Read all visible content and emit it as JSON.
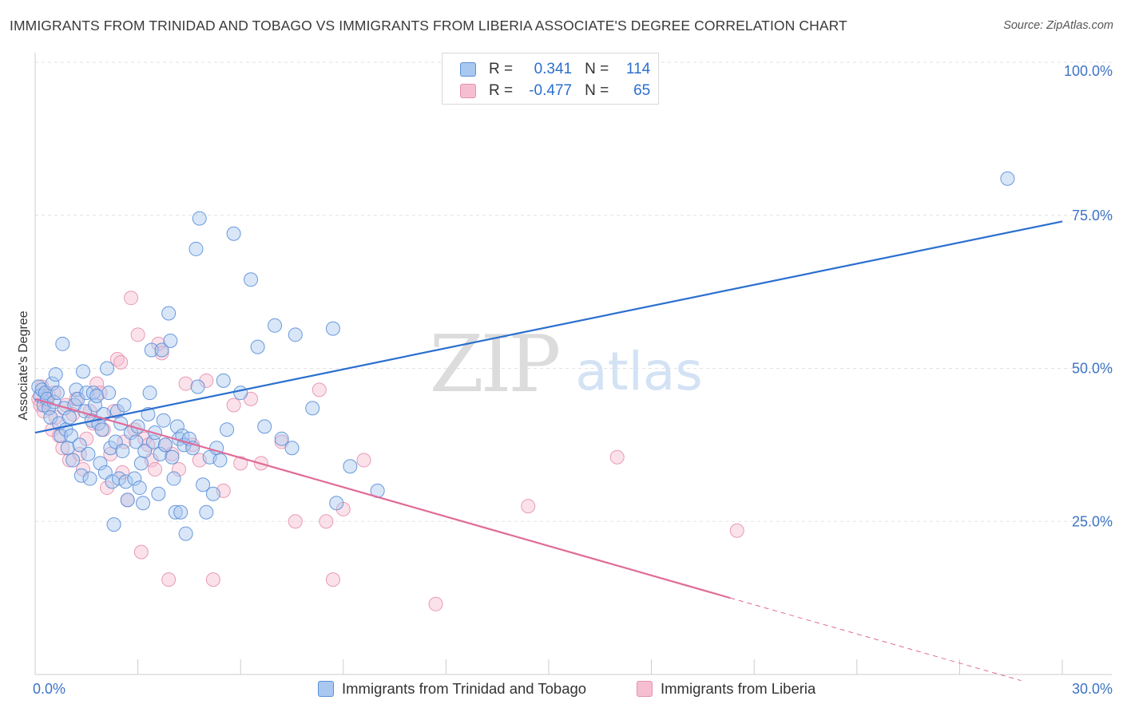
{
  "header": {
    "title": "IMMIGRANTS FROM TRINIDAD AND TOBAGO VS IMMIGRANTS FROM LIBERIA ASSOCIATE'S DEGREE CORRELATION CHART",
    "source": "Source: ZipAtlas.com"
  },
  "watermark": {
    "part1": "ZIP",
    "part2": "atlas"
  },
  "colors": {
    "blue_fill": "#a8c8f0",
    "blue_stroke": "#5b8fd8",
    "blue_line": "#2b6fcf",
    "pink_fill": "#f6bfd1",
    "pink_stroke": "#e690ae",
    "pink_line": "#e06c98",
    "tick_label": "#3d73c5",
    "grid": "#e2e2e2"
  },
  "legend": {
    "rows": [
      {
        "r_label": "R =",
        "r_value": "0.341",
        "n_label": "N =",
        "n_value": "114"
      },
      {
        "r_label": "R =",
        "r_value": "-0.477",
        "n_label": "N =",
        "n_value": "65"
      }
    ]
  },
  "chart_data": {
    "type": "scatter",
    "title": "IMMIGRANTS FROM TRINIDAD AND TOBAGO VS IMMIGRANTS FROM LIBERIA ASSOCIATE'S DEGREE CORRELATION CHART",
    "xlabel": "",
    "ylabel": "Associate's Degree",
    "xlim": [
      0,
      30
    ],
    "ylim": [
      0,
      100
    ],
    "x_tick_labels": [
      "0.0%",
      "30.0%"
    ],
    "x_tick_values": [
      0,
      30
    ],
    "y_tick_labels": [
      "100.0%",
      "75.0%",
      "50.0%",
      "25.0%"
    ],
    "y_tick_values": [
      100,
      75,
      50,
      25
    ],
    "grid": true,
    "legend_position": "top-center",
    "series": [
      {
        "name": "Immigrants from Trinidad and Tobago",
        "trendline": {
          "x": [
            0,
            30
          ],
          "y": [
            39.5,
            74
          ]
        },
        "points": [
          [
            0.1,
            47
          ],
          [
            0.15,
            45.5
          ],
          [
            0.2,
            46.5
          ],
          [
            0.25,
            44
          ],
          [
            0.3,
            46
          ],
          [
            0.35,
            45
          ],
          [
            0.4,
            43.5
          ],
          [
            0.45,
            42
          ],
          [
            0.5,
            47.5
          ],
          [
            0.55,
            44.5
          ],
          [
            0.6,
            49
          ],
          [
            0.65,
            46
          ],
          [
            0.7,
            41
          ],
          [
            0.75,
            39
          ],
          [
            0.8,
            54
          ],
          [
            0.85,
            43.5
          ],
          [
            0.9,
            40
          ],
          [
            0.95,
            37
          ],
          [
            1.0,
            42
          ],
          [
            1.05,
            39
          ],
          [
            1.1,
            35
          ],
          [
            1.15,
            44
          ],
          [
            1.2,
            46.5
          ],
          [
            1.25,
            45
          ],
          [
            1.3,
            37.5
          ],
          [
            1.35,
            32.5
          ],
          [
            1.4,
            49.5
          ],
          [
            1.45,
            43
          ],
          [
            1.5,
            46
          ],
          [
            1.55,
            36
          ],
          [
            1.6,
            32
          ],
          [
            1.65,
            41.5
          ],
          [
            1.7,
            46
          ],
          [
            1.75,
            44
          ],
          [
            1.8,
            45.5
          ],
          [
            1.85,
            41
          ],
          [
            1.9,
            34.5
          ],
          [
            1.95,
            40
          ],
          [
            2.0,
            42.5
          ],
          [
            2.05,
            33
          ],
          [
            2.1,
            50
          ],
          [
            2.15,
            46
          ],
          [
            2.2,
            37
          ],
          [
            2.25,
            31.5
          ],
          [
            2.3,
            24.5
          ],
          [
            2.35,
            38
          ],
          [
            2.4,
            43
          ],
          [
            2.45,
            32
          ],
          [
            2.5,
            41
          ],
          [
            2.55,
            36.5
          ],
          [
            2.6,
            44
          ],
          [
            2.65,
            31.5
          ],
          [
            2.7,
            28.5
          ],
          [
            2.8,
            39.5
          ],
          [
            2.9,
            32
          ],
          [
            2.95,
            38
          ],
          [
            3.0,
            40.5
          ],
          [
            3.05,
            30.5
          ],
          [
            3.1,
            34.5
          ],
          [
            3.15,
            28
          ],
          [
            3.2,
            36.5
          ],
          [
            3.3,
            42.5
          ],
          [
            3.35,
            46
          ],
          [
            3.4,
            53
          ],
          [
            3.45,
            38
          ],
          [
            3.5,
            39.5
          ],
          [
            3.6,
            29.5
          ],
          [
            3.65,
            36
          ],
          [
            3.7,
            53
          ],
          [
            3.75,
            41.5
          ],
          [
            3.8,
            37.5
          ],
          [
            3.9,
            59
          ],
          [
            3.95,
            54.5
          ],
          [
            4.0,
            35.5
          ],
          [
            4.05,
            32
          ],
          [
            4.1,
            26.5
          ],
          [
            4.15,
            40.5
          ],
          [
            4.2,
            38.5
          ],
          [
            4.25,
            26.5
          ],
          [
            4.3,
            39
          ],
          [
            4.35,
            37.5
          ],
          [
            4.4,
            23
          ],
          [
            4.5,
            38.5
          ],
          [
            4.6,
            37
          ],
          [
            4.7,
            69.5
          ],
          [
            4.75,
            47
          ],
          [
            4.8,
            74.5
          ],
          [
            4.9,
            31
          ],
          [
            5.0,
            26.5
          ],
          [
            5.1,
            35.5
          ],
          [
            5.2,
            29.5
          ],
          [
            5.3,
            37
          ],
          [
            5.4,
            35
          ],
          [
            5.5,
            48
          ],
          [
            5.6,
            40
          ],
          [
            5.8,
            72
          ],
          [
            6.0,
            46
          ],
          [
            6.3,
            64.5
          ],
          [
            6.5,
            53.5
          ],
          [
            6.7,
            40.5
          ],
          [
            7.0,
            57
          ],
          [
            7.2,
            38.5
          ],
          [
            7.5,
            37
          ],
          [
            7.6,
            55.5
          ],
          [
            8.1,
            43.5
          ],
          [
            8.7,
            56.5
          ],
          [
            8.8,
            28
          ],
          [
            9.2,
            34
          ],
          [
            10.0,
            30
          ],
          [
            28.4,
            81
          ]
        ]
      },
      {
        "name": "Immigrants from Liberia",
        "trendline": {
          "x": [
            0,
            20.3
          ],
          "y": [
            45,
            12.5
          ]
        },
        "trendline_dashed": {
          "x": [
            20.3,
            28.8
          ],
          "y": [
            12.5,
            -1
          ]
        },
        "points": [
          [
            0.1,
            45
          ],
          [
            0.15,
            44
          ],
          [
            0.2,
            47
          ],
          [
            0.25,
            43
          ],
          [
            0.3,
            46
          ],
          [
            0.35,
            44.5
          ],
          [
            0.4,
            45.5
          ],
          [
            0.5,
            40
          ],
          [
            0.55,
            46
          ],
          [
            0.6,
            42
          ],
          [
            0.7,
            39
          ],
          [
            0.8,
            37
          ],
          [
            0.9,
            44
          ],
          [
            1.0,
            35
          ],
          [
            1.1,
            42.5
          ],
          [
            1.2,
            45
          ],
          [
            1.3,
            36
          ],
          [
            1.4,
            33.5
          ],
          [
            1.5,
            38.5
          ],
          [
            1.6,
            43
          ],
          [
            1.7,
            41
          ],
          [
            1.8,
            47.5
          ],
          [
            1.9,
            46
          ],
          [
            2.0,
            40
          ],
          [
            2.1,
            30.5
          ],
          [
            2.2,
            36
          ],
          [
            2.3,
            43
          ],
          [
            2.4,
            51.5
          ],
          [
            2.5,
            51
          ],
          [
            2.55,
            33
          ],
          [
            2.6,
            38
          ],
          [
            2.7,
            28.5
          ],
          [
            2.8,
            61.5
          ],
          [
            2.9,
            40
          ],
          [
            3.0,
            55.5
          ],
          [
            3.1,
            20
          ],
          [
            3.2,
            38.5
          ],
          [
            3.3,
            37.5
          ],
          [
            3.4,
            35
          ],
          [
            3.5,
            33.5
          ],
          [
            3.6,
            54
          ],
          [
            3.7,
            52.5
          ],
          [
            3.8,
            37.5
          ],
          [
            3.9,
            15.5
          ],
          [
            4.0,
            36
          ],
          [
            4.2,
            33.5
          ],
          [
            4.4,
            47.5
          ],
          [
            4.6,
            37.5
          ],
          [
            4.8,
            35
          ],
          [
            5.0,
            48
          ],
          [
            5.2,
            15.5
          ],
          [
            5.5,
            30
          ],
          [
            5.8,
            44
          ],
          [
            6.0,
            34.5
          ],
          [
            6.3,
            45
          ],
          [
            6.6,
            34.5
          ],
          [
            7.2,
            38
          ],
          [
            7.6,
            25
          ],
          [
            8.3,
            46.5
          ],
          [
            8.5,
            25
          ],
          [
            8.7,
            15.5
          ],
          [
            9.0,
            27
          ],
          [
            9.6,
            35
          ],
          [
            11.7,
            11.5
          ],
          [
            14.4,
            27.5
          ],
          [
            17.0,
            35.5
          ],
          [
            20.5,
            23.5
          ]
        ]
      }
    ]
  },
  "bottom_legend": {
    "items": [
      "Immigrants from Trinidad and Tobago",
      "Immigrants from Liberia"
    ]
  }
}
